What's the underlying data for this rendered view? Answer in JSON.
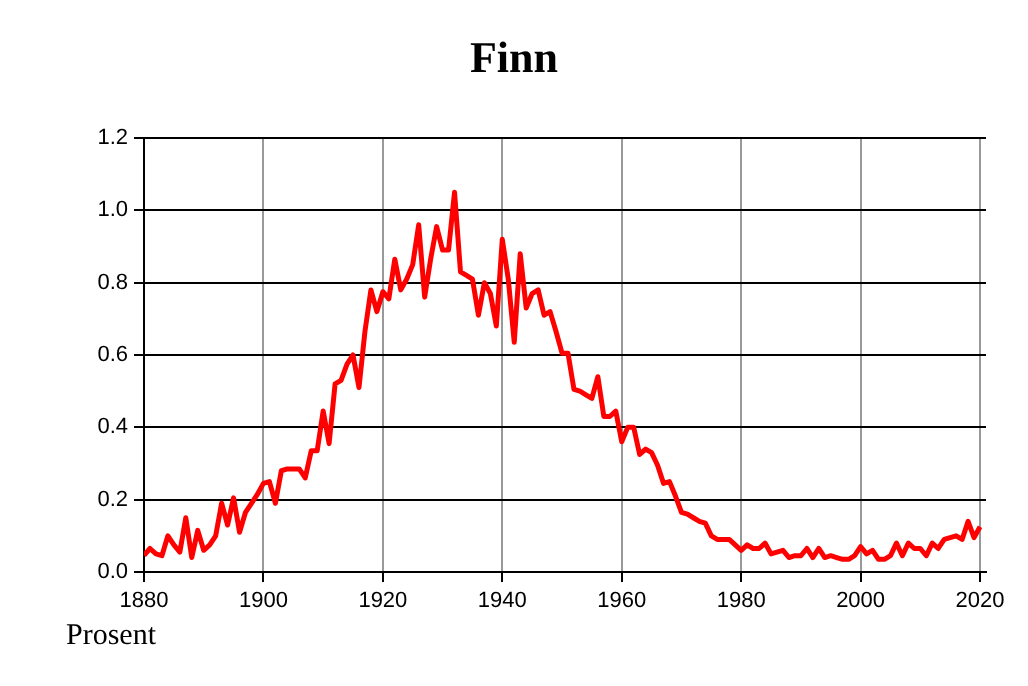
{
  "chart_data": {
    "type": "line",
    "title": "Finn",
    "ylabel": "Prosent",
    "x": [
      1880,
      1881,
      1882,
      1883,
      1884,
      1885,
      1886,
      1887,
      1888,
      1889,
      1890,
      1891,
      1892,
      1893,
      1894,
      1895,
      1896,
      1897,
      1898,
      1899,
      1900,
      1901,
      1902,
      1903,
      1904,
      1905,
      1906,
      1907,
      1908,
      1909,
      1910,
      1911,
      1912,
      1913,
      1914,
      1915,
      1916,
      1917,
      1918,
      1919,
      1920,
      1921,
      1922,
      1923,
      1924,
      1925,
      1926,
      1927,
      1928,
      1929,
      1930,
      1931,
      1932,
      1933,
      1934,
      1935,
      1936,
      1937,
      1938,
      1939,
      1940,
      1941,
      1942,
      1943,
      1944,
      1945,
      1946,
      1947,
      1948,
      1949,
      1950,
      1951,
      1952,
      1953,
      1954,
      1955,
      1956,
      1957,
      1958,
      1959,
      1960,
      1961,
      1962,
      1963,
      1964,
      1965,
      1966,
      1967,
      1968,
      1969,
      1970,
      1971,
      1972,
      1973,
      1974,
      1975,
      1976,
      1977,
      1978,
      1979,
      1980,
      1981,
      1982,
      1983,
      1984,
      1985,
      1986,
      1987,
      1988,
      1989,
      1990,
      1991,
      1992,
      1993,
      1994,
      1995,
      1996,
      1997,
      1998,
      1999,
      2000,
      2001,
      2002,
      2003,
      2004,
      2005,
      2006,
      2007,
      2008,
      2009,
      2010,
      2011,
      2012,
      2013,
      2014,
      2015,
      2016,
      2017,
      2018,
      2019,
      2020
    ],
    "series": [
      {
        "color": "#ff0000",
        "values": [
          0.046,
          0.065,
          0.05,
          0.045,
          0.1,
          0.075,
          0.055,
          0.15,
          0.04,
          0.115,
          0.06,
          0.075,
          0.1,
          0.19,
          0.13,
          0.205,
          0.11,
          0.165,
          0.19,
          0.215,
          0.245,
          0.25,
          0.19,
          0.28,
          0.285,
          0.285,
          0.285,
          0.26,
          0.335,
          0.335,
          0.445,
          0.355,
          0.52,
          0.53,
          0.575,
          0.6,
          0.51,
          0.665,
          0.78,
          0.72,
          0.775,
          0.755,
          0.865,
          0.78,
          0.81,
          0.85,
          0.96,
          0.76,
          0.865,
          0.955,
          0.89,
          0.89,
          1.05,
          0.83,
          0.82,
          0.81,
          0.71,
          0.8,
          0.77,
          0.68,
          0.92,
          0.81,
          0.635,
          0.88,
          0.73,
          0.77,
          0.78,
          0.71,
          0.72,
          0.665,
          0.605,
          0.605,
          0.505,
          0.5,
          0.49,
          0.48,
          0.54,
          0.43,
          0.43,
          0.445,
          0.36,
          0.4,
          0.4,
          0.325,
          0.34,
          0.33,
          0.295,
          0.245,
          0.25,
          0.21,
          0.165,
          0.16,
          0.15,
          0.14,
          0.135,
          0.1,
          0.09,
          0.09,
          0.09,
          0.075,
          0.06,
          0.075,
          0.065,
          0.065,
          0.08,
          0.05,
          0.055,
          0.06,
          0.04,
          0.045,
          0.045,
          0.065,
          0.04,
          0.065,
          0.04,
          0.045,
          0.04,
          0.035,
          0.035,
          0.045,
          0.07,
          0.05,
          0.06,
          0.035,
          0.035,
          0.045,
          0.08,
          0.045,
          0.08,
          0.065,
          0.065,
          0.045,
          0.08,
          0.065,
          0.09,
          0.095,
          0.1,
          0.09,
          0.14,
          0.095,
          0.125
        ]
      }
    ],
    "xlim": [
      1880,
      2021
    ],
    "xticks": [
      1880,
      1900,
      1920,
      1940,
      1960,
      1980,
      2000,
      2020
    ],
    "ylim": [
      0,
      1.2
    ],
    "yticks": [
      {
        "value": 0,
        "label": "0.0"
      },
      0.2,
      0.4,
      0.6,
      0.8,
      {
        "value": 1,
        "label": "1.0"
      },
      1.2
    ],
    "grid": true,
    "legend": false,
    "marker": "none",
    "line_style": "solid"
  }
}
